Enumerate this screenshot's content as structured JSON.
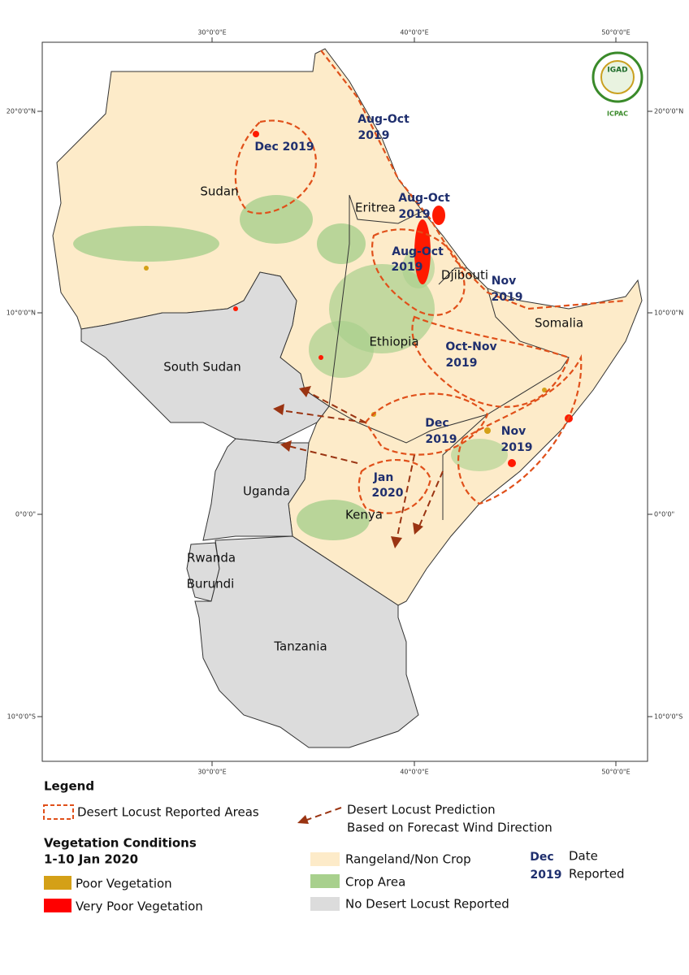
{
  "map": {
    "graticule": {
      "top": [
        "30°0'0\"E",
        "40°0'0\"E",
        "50°0'0\"E"
      ],
      "bottom": [
        "30°0'0\"E",
        "40°0'0\"E",
        "50°0'0\"E"
      ],
      "left": [
        "20°0'0\"N",
        "10°0'0\"N",
        "0°0'0\"",
        "10°0'0\"S"
      ],
      "right": [
        "20°0'0\"N",
        "10°0'0\"N",
        "0°0'0\"",
        "10°0'0\"S"
      ]
    },
    "logo": {
      "name": "IGAD",
      "org": "ICPAC"
    },
    "countries": [
      "Sudan",
      "Eritrea",
      "Djibouti",
      "Somalia",
      "Ethiopia",
      "South Sudan",
      "Uganda",
      "Kenya",
      "Rwanda",
      "Burundi",
      "Tanzania"
    ],
    "locust_labels": [
      [
        "Aug-Oct",
        "2019"
      ],
      [
        "Dec 2019"
      ],
      [
        "Aug-Oct",
        "2019"
      ],
      [
        "Aug-Oct",
        "2019"
      ],
      [
        "Nov",
        "2019"
      ],
      [
        "Oct-Nov",
        "2019"
      ],
      [
        "Dec",
        "2019"
      ],
      [
        "Nov",
        "2019"
      ],
      [
        "Jan",
        "2020"
      ]
    ]
  },
  "legend": {
    "title": "Legend",
    "reported_areas": "Desert Locust Reported Areas",
    "prediction": [
      "Desert Locust Prediction",
      "Based on Forecast Wind Direction"
    ],
    "vegetation_title": "Vegetation Conditions",
    "vegetation_period": "1-10 Jan 2020",
    "poor": "Poor Vegetation",
    "very_poor": "Very Poor Vegetation",
    "rangeland": "Rangeland/Non Crop",
    "crop": "Crop Area",
    "no_locust": "No Desert Locust Reported",
    "date_sample": [
      "Dec",
      "2019"
    ],
    "date_note": [
      "Date",
      "Reported"
    ]
  }
}
